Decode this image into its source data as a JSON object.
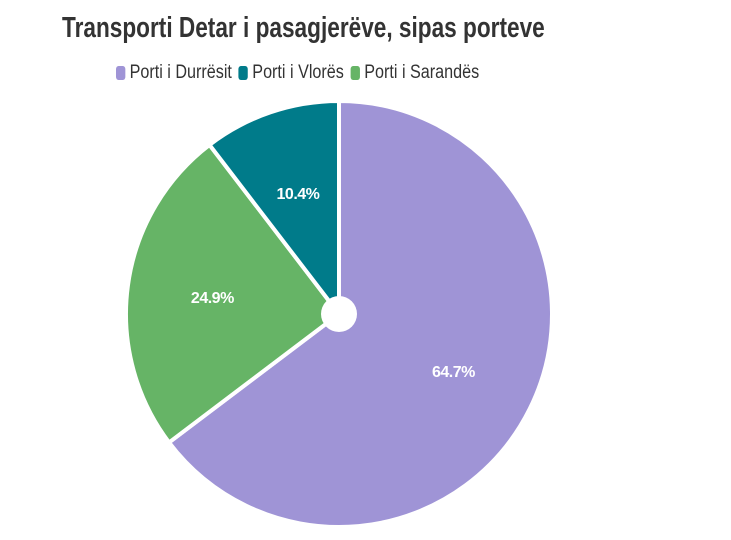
{
  "chart_data": {
    "type": "pie",
    "title": "Transporti Detar i pasagjerëve, sipas porteve",
    "legend_position": "top",
    "series": [
      {
        "name": "Porti i Durrësit",
        "value": 64.7,
        "label": "64.7%",
        "color": "#9f94d6"
      },
      {
        "name": "Porti i Sarandës",
        "value": 24.9,
        "label": "24.9%",
        "color": "#66b466"
      },
      {
        "name": "Porti i Vlorës",
        "value": 10.4,
        "label": "10.4%",
        "color": "#007b8a"
      }
    ],
    "legend_order": [
      "Porti i Durrësit",
      "Porti i Vlorës",
      "Porti i Sarandës"
    ]
  }
}
